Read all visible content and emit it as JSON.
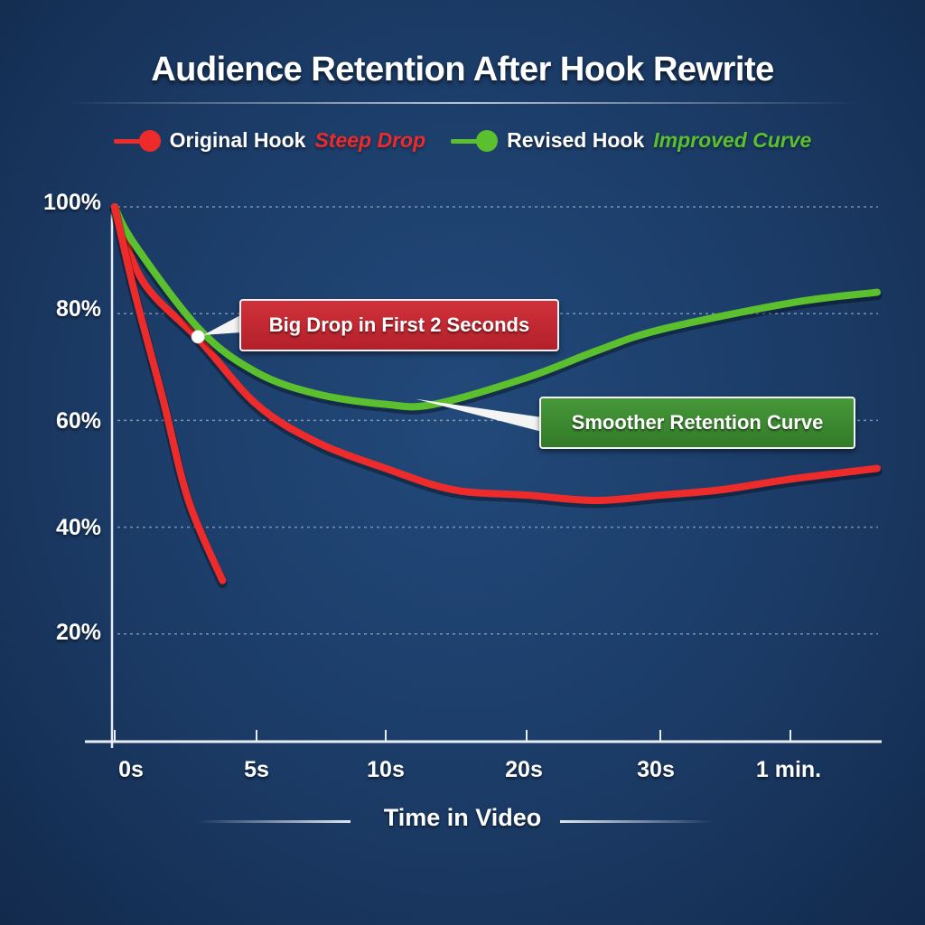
{
  "chart_data": {
    "type": "line",
    "title": "Audience Retention After Hook Rewrite",
    "xlabel": "Time in Video",
    "ylabel": "",
    "x_ticks": [
      {
        "label": "0s",
        "value": 0
      },
      {
        "label": "5s",
        "value": 5
      },
      {
        "label": "10s",
        "value": 10
      },
      {
        "label": "20s",
        "value": 20
      },
      {
        "label": "30s",
        "value": 30
      },
      {
        "label": "1 min.",
        "value": 60
      }
    ],
    "y_ticks": [
      "100%",
      "80%",
      "60%",
      "40%",
      "20%"
    ],
    "ylim": [
      0,
      100
    ],
    "grid": "horizontal dashed",
    "legend_position": "top",
    "legend": [
      {
        "label": "Original Hook",
        "note": "Steep Drop",
        "color": "#ee2b2b"
      },
      {
        "label": "Revised Hook",
        "note": "Improved Curve",
        "color": "#5cbf2e"
      }
    ],
    "series": [
      {
        "name": "Original Hook",
        "color": "#ee2b2b",
        "x": [
          0,
          0.7,
          1.7,
          2.6,
          3.8
        ],
        "y": [
          100,
          84,
          64,
          45,
          30
        ]
      },
      {
        "name": "Original Hook",
        "color": "#ee2b2b",
        "x": [
          0,
          1,
          3,
          5,
          7.3,
          10,
          14.8,
          20,
          25.2,
          30,
          44,
          60,
          80
        ],
        "y": [
          100,
          86,
          75,
          63,
          56,
          51,
          47,
          46,
          45,
          46,
          47,
          49,
          51
        ]
      },
      {
        "name": "Revised Hook",
        "color": "#5cbf2e",
        "x": [
          0,
          0.7,
          3,
          5,
          7.3,
          10,
          13.4,
          20,
          25.2,
          30,
          60,
          80
        ],
        "y": [
          100,
          93,
          77,
          69,
          65,
          63,
          63,
          68,
          73,
          77,
          82,
          84
        ]
      }
    ],
    "annotations": [
      {
        "text": "Big Drop in First 2 Seconds",
        "color": "#c0272d",
        "x": 3,
        "y": 76
      },
      {
        "text": "Smoother Retention Curve",
        "color": "#3a8a2e",
        "x": 15,
        "y": 63
      }
    ]
  }
}
